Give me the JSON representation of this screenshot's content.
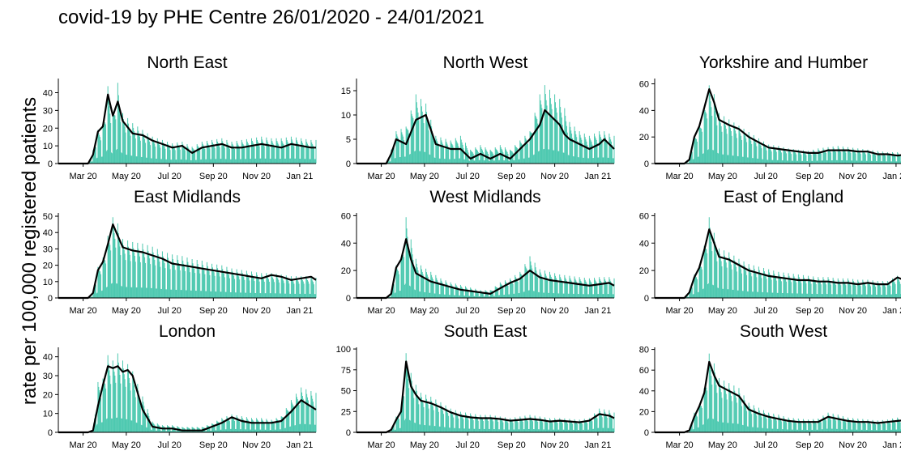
{
  "title": "covid-19 by PHE Centre 26/01/2020 - 24/01/2021",
  "ylabel": "rate per 100,000 registered patients",
  "x_tick_labels": [
    "Mar 20",
    "May 20",
    "Jul 20",
    "Sep 20",
    "Nov 20",
    "Jan 21"
  ],
  "colors": {
    "bars": "#4ec9b0",
    "line": "#000000",
    "text": "#000000"
  },
  "chart_data": [
    {
      "type": "bar",
      "title": "North East",
      "ylim": [
        0,
        48
      ],
      "yticks": [
        0,
        10,
        20,
        30,
        40
      ],
      "x": [
        "2020-01-26",
        "2020-02-23",
        "2020-03-08",
        "2020-03-15",
        "2020-03-22",
        "2020-03-29",
        "2020-04-05",
        "2020-04-12",
        "2020-04-19",
        "2020-04-26",
        "2020-05-10",
        "2020-05-24",
        "2020-06-07",
        "2020-06-21",
        "2020-07-05",
        "2020-07-19",
        "2020-08-02",
        "2020-08-16",
        "2020-08-30",
        "2020-09-13",
        "2020-09-27",
        "2020-10-11",
        "2020-10-25",
        "2020-11-08",
        "2020-11-22",
        "2020-12-06",
        "2020-12-20",
        "2021-01-03",
        "2021-01-17",
        "2021-01-24"
      ],
      "bar_peaks": [
        0,
        0,
        0,
        8,
        20,
        22,
        46,
        30,
        48,
        30,
        24,
        20,
        16,
        14,
        12,
        13,
        10,
        13,
        14,
        15,
        13,
        14,
        15,
        16,
        15,
        15,
        16,
        15,
        14,
        14
      ],
      "trend": [
        0,
        0,
        0,
        5,
        18,
        21,
        39,
        27,
        35,
        24,
        17,
        16,
        13,
        11,
        9,
        10,
        6,
        9,
        10,
        11,
        9,
        9,
        10,
        11,
        10,
        9,
        11,
        10,
        9,
        9
      ]
    },
    {
      "type": "bar",
      "title": "North West",
      "ylim": [
        0,
        17.5
      ],
      "yticks": [
        0,
        5,
        10,
        15
      ],
      "x": [
        "2020-01-26",
        "2020-02-23",
        "2020-03-08",
        "2020-03-15",
        "2020-03-22",
        "2020-04-05",
        "2020-04-19",
        "2020-05-03",
        "2020-05-17",
        "2020-06-07",
        "2020-06-21",
        "2020-07-05",
        "2020-07-19",
        "2020-08-02",
        "2020-08-16",
        "2020-08-30",
        "2020-09-13",
        "2020-09-27",
        "2020-10-11",
        "2020-10-18",
        "2020-10-25",
        "2020-11-01",
        "2020-11-08",
        "2020-11-15",
        "2020-11-22",
        "2020-12-06",
        "2020-12-20",
        "2021-01-03",
        "2021-01-10",
        "2021-01-24"
      ],
      "bar_peaks": [
        0,
        0,
        0,
        3,
        7,
        8,
        15,
        13,
        6,
        5,
        6,
        3,
        4,
        3,
        4,
        3,
        5,
        7,
        15,
        17,
        16,
        15,
        14,
        12,
        9,
        7,
        6,
        7,
        7,
        6
      ],
      "trend": [
        0,
        0,
        0,
        2,
        5,
        4,
        9,
        10,
        4,
        3,
        3,
        1,
        2,
        1,
        2,
        1,
        3,
        5,
        8,
        11,
        10,
        9,
        8,
        6,
        5,
        4,
        3,
        4,
        5,
        3
      ]
    },
    {
      "type": "bar",
      "title": "Yorkshire and Humber",
      "ylim": [
        0,
        64
      ],
      "yticks": [
        0,
        20,
        40,
        60
      ],
      "x": [
        "2020-01-26",
        "2020-02-23",
        "2020-03-08",
        "2020-03-15",
        "2020-03-22",
        "2020-03-29",
        "2020-04-05",
        "2020-04-12",
        "2020-04-19",
        "2020-04-26",
        "2020-05-10",
        "2020-05-24",
        "2020-06-07",
        "2020-06-21",
        "2020-07-05",
        "2020-07-19",
        "2020-08-02",
        "2020-08-16",
        "2020-08-30",
        "2020-09-13",
        "2020-09-27",
        "2020-10-11",
        "2020-10-25",
        "2020-11-08",
        "2020-11-22",
        "2020-12-06",
        "2020-12-20",
        "2021-01-03",
        "2021-01-17",
        "2021-01-24"
      ],
      "bar_peaks": [
        0,
        0,
        0,
        4,
        22,
        30,
        45,
        62,
        55,
        40,
        35,
        30,
        25,
        20,
        15,
        14,
        12,
        11,
        10,
        12,
        13,
        14,
        13,
        12,
        11,
        10,
        9,
        9,
        9,
        9
      ],
      "trend": [
        0,
        0,
        0,
        3,
        20,
        28,
        42,
        56,
        46,
        33,
        29,
        26,
        20,
        16,
        12,
        11,
        10,
        9,
        8,
        8,
        10,
        10,
        10,
        9,
        9,
        7,
        7,
        6,
        7,
        7
      ]
    },
    {
      "type": "bar",
      "title": "East Midlands",
      "ylim": [
        0,
        52
      ],
      "yticks": [
        0,
        10,
        20,
        30,
        40,
        50
      ],
      "x": [
        "2020-01-26",
        "2020-02-23",
        "2020-03-08",
        "2020-03-15",
        "2020-03-22",
        "2020-03-29",
        "2020-04-05",
        "2020-04-12",
        "2020-04-19",
        "2020-04-26",
        "2020-05-10",
        "2020-05-24",
        "2020-06-07",
        "2020-06-21",
        "2020-07-05",
        "2020-07-19",
        "2020-08-02",
        "2020-08-16",
        "2020-08-30",
        "2020-09-13",
        "2020-09-27",
        "2020-10-11",
        "2020-10-25",
        "2020-11-08",
        "2020-11-22",
        "2020-12-06",
        "2020-12-20",
        "2021-01-03",
        "2021-01-17",
        "2021-01-24"
      ],
      "bar_peaks": [
        0,
        0,
        0,
        4,
        20,
        26,
        40,
        52,
        48,
        38,
        36,
        35,
        33,
        30,
        28,
        27,
        25,
        24,
        22,
        21,
        19,
        18,
        17,
        16,
        16,
        15,
        14,
        14,
        14,
        13
      ],
      "trend": [
        0,
        0,
        0,
        3,
        17,
        22,
        33,
        45,
        38,
        31,
        29,
        28,
        26,
        24,
        21,
        20,
        19,
        18,
        17,
        16,
        15,
        14,
        13,
        12,
        14,
        13,
        11,
        12,
        13,
        11
      ]
    },
    {
      "type": "bar",
      "title": "West Midlands",
      "ylim": [
        0,
        62
      ],
      "yticks": [
        0,
        20,
        40,
        60
      ],
      "x": [
        "2020-01-26",
        "2020-02-23",
        "2020-03-08",
        "2020-03-15",
        "2020-03-22",
        "2020-03-29",
        "2020-04-05",
        "2020-04-12",
        "2020-04-19",
        "2020-04-26",
        "2020-05-10",
        "2020-05-24",
        "2020-06-07",
        "2020-06-21",
        "2020-07-05",
        "2020-07-19",
        "2020-08-02",
        "2020-08-16",
        "2020-08-30",
        "2020-09-13",
        "2020-09-27",
        "2020-10-11",
        "2020-10-25",
        "2020-11-08",
        "2020-11-22",
        "2020-12-06",
        "2020-12-20",
        "2021-01-03",
        "2021-01-17",
        "2021-01-24"
      ],
      "bar_peaks": [
        0,
        0,
        0,
        4,
        25,
        30,
        62,
        45,
        30,
        25,
        20,
        15,
        12,
        10,
        8,
        6,
        6,
        12,
        15,
        20,
        32,
        22,
        20,
        18,
        17,
        16,
        15,
        16,
        16,
        15
      ],
      "trend": [
        0,
        0,
        0,
        3,
        22,
        28,
        43,
        28,
        18,
        16,
        12,
        10,
        8,
        6,
        5,
        4,
        3,
        7,
        11,
        14,
        20,
        15,
        13,
        12,
        11,
        10,
        9,
        10,
        11,
        9
      ]
    },
    {
      "type": "bar",
      "title": "East of England",
      "ylim": [
        0,
        62
      ],
      "yticks": [
        0,
        20,
        40,
        60
      ],
      "x": [
        "2020-01-26",
        "2020-02-23",
        "2020-03-08",
        "2020-03-15",
        "2020-03-22",
        "2020-03-29",
        "2020-04-05",
        "2020-04-12",
        "2020-04-19",
        "2020-04-26",
        "2020-05-10",
        "2020-05-24",
        "2020-06-07",
        "2020-06-21",
        "2020-07-05",
        "2020-07-19",
        "2020-08-02",
        "2020-08-16",
        "2020-08-30",
        "2020-09-13",
        "2020-09-27",
        "2020-10-11",
        "2020-10-25",
        "2020-11-08",
        "2020-11-22",
        "2020-12-06",
        "2020-12-20",
        "2021-01-03",
        "2021-01-17",
        "2021-01-24"
      ],
      "bar_peaks": [
        0,
        0,
        0,
        5,
        18,
        25,
        40,
        62,
        50,
        38,
        35,
        30,
        26,
        24,
        22,
        20,
        19,
        18,
        17,
        16,
        16,
        15,
        15,
        14,
        14,
        13,
        13,
        17,
        15,
        13
      ],
      "trend": [
        0,
        0,
        0,
        4,
        15,
        22,
        35,
        50,
        40,
        30,
        28,
        24,
        20,
        18,
        16,
        15,
        14,
        13,
        13,
        12,
        12,
        11,
        11,
        10,
        11,
        10,
        10,
        15,
        12,
        10
      ]
    },
    {
      "type": "bar",
      "title": "London",
      "ylim": [
        0,
        45
      ],
      "yticks": [
        0,
        10,
        20,
        30,
        40
      ],
      "x": [
        "2020-01-26",
        "2020-02-23",
        "2020-03-08",
        "2020-03-15",
        "2020-03-22",
        "2020-03-29",
        "2020-04-05",
        "2020-04-12",
        "2020-04-19",
        "2020-04-26",
        "2020-05-03",
        "2020-05-10",
        "2020-05-24",
        "2020-06-07",
        "2020-06-21",
        "2020-07-05",
        "2020-07-19",
        "2020-08-02",
        "2020-08-16",
        "2020-08-30",
        "2020-09-13",
        "2020-09-27",
        "2020-10-11",
        "2020-10-25",
        "2020-11-08",
        "2020-11-22",
        "2020-12-06",
        "2020-12-20",
        "2021-01-03",
        "2021-01-24"
      ],
      "bar_peaks": [
        0,
        0,
        0,
        2,
        28,
        30,
        43,
        40,
        44,
        40,
        38,
        34,
        20,
        6,
        4,
        4,
        3,
        3,
        3,
        5,
        8,
        10,
        9,
        8,
        8,
        7,
        9,
        18,
        25,
        22
      ],
      "trend": [
        0,
        0,
        0,
        1,
        14,
        25,
        35,
        34,
        35,
        32,
        33,
        30,
        12,
        3,
        2,
        2,
        1,
        1,
        1,
        3,
        5,
        8,
        6,
        5,
        5,
        5,
        6,
        11,
        17,
        12
      ]
    },
    {
      "type": "bar",
      "title": "South East",
      "ylim": [
        0,
        102
      ],
      "yticks": [
        0,
        25,
        50,
        75,
        100
      ],
      "x": [
        "2020-01-26",
        "2020-02-23",
        "2020-03-08",
        "2020-03-15",
        "2020-03-22",
        "2020-03-29",
        "2020-04-05",
        "2020-04-12",
        "2020-04-19",
        "2020-04-26",
        "2020-05-10",
        "2020-05-24",
        "2020-06-07",
        "2020-06-21",
        "2020-07-05",
        "2020-07-19",
        "2020-08-02",
        "2020-08-16",
        "2020-08-30",
        "2020-09-13",
        "2020-09-27",
        "2020-10-11",
        "2020-10-25",
        "2020-11-08",
        "2020-11-22",
        "2020-12-06",
        "2020-12-20",
        "2021-01-03",
        "2021-01-17",
        "2021-01-24"
      ],
      "bar_peaks": [
        0,
        0,
        0,
        5,
        20,
        30,
        100,
        75,
        60,
        50,
        45,
        38,
        30,
        26,
        24,
        22,
        22,
        20,
        18,
        20,
        22,
        20,
        18,
        18,
        17,
        16,
        18,
        30,
        28,
        25
      ],
      "trend": [
        0,
        0,
        0,
        3,
        15,
        25,
        85,
        55,
        45,
        38,
        35,
        30,
        24,
        20,
        18,
        17,
        17,
        16,
        14,
        15,
        16,
        15,
        13,
        14,
        13,
        12,
        14,
        22,
        20,
        17
      ]
    },
    {
      "type": "bar",
      "title": "South West",
      "ylim": [
        0,
        82
      ],
      "yticks": [
        0,
        20,
        40,
        60,
        80
      ],
      "x": [
        "2020-01-26",
        "2020-02-23",
        "2020-03-08",
        "2020-03-15",
        "2020-03-22",
        "2020-03-29",
        "2020-04-05",
        "2020-04-12",
        "2020-04-19",
        "2020-04-26",
        "2020-05-10",
        "2020-05-24",
        "2020-06-07",
        "2020-06-21",
        "2020-07-05",
        "2020-07-19",
        "2020-08-02",
        "2020-08-16",
        "2020-08-30",
        "2020-09-13",
        "2020-09-27",
        "2020-10-11",
        "2020-10-25",
        "2020-11-08",
        "2020-11-22",
        "2020-12-06",
        "2020-12-20",
        "2021-01-03",
        "2021-01-17",
        "2021-01-24"
      ],
      "bar_peaks": [
        0,
        0,
        0,
        3,
        20,
        28,
        45,
        80,
        70,
        55,
        50,
        45,
        30,
        25,
        20,
        18,
        15,
        14,
        13,
        14,
        20,
        18,
        15,
        14,
        13,
        12,
        13,
        15,
        17,
        18
      ],
      "trend": [
        0,
        0,
        0,
        2,
        15,
        25,
        38,
        68,
        55,
        45,
        40,
        35,
        22,
        18,
        15,
        13,
        11,
        10,
        10,
        10,
        15,
        13,
        11,
        10,
        10,
        9,
        10,
        11,
        12,
        14
      ]
    }
  ]
}
